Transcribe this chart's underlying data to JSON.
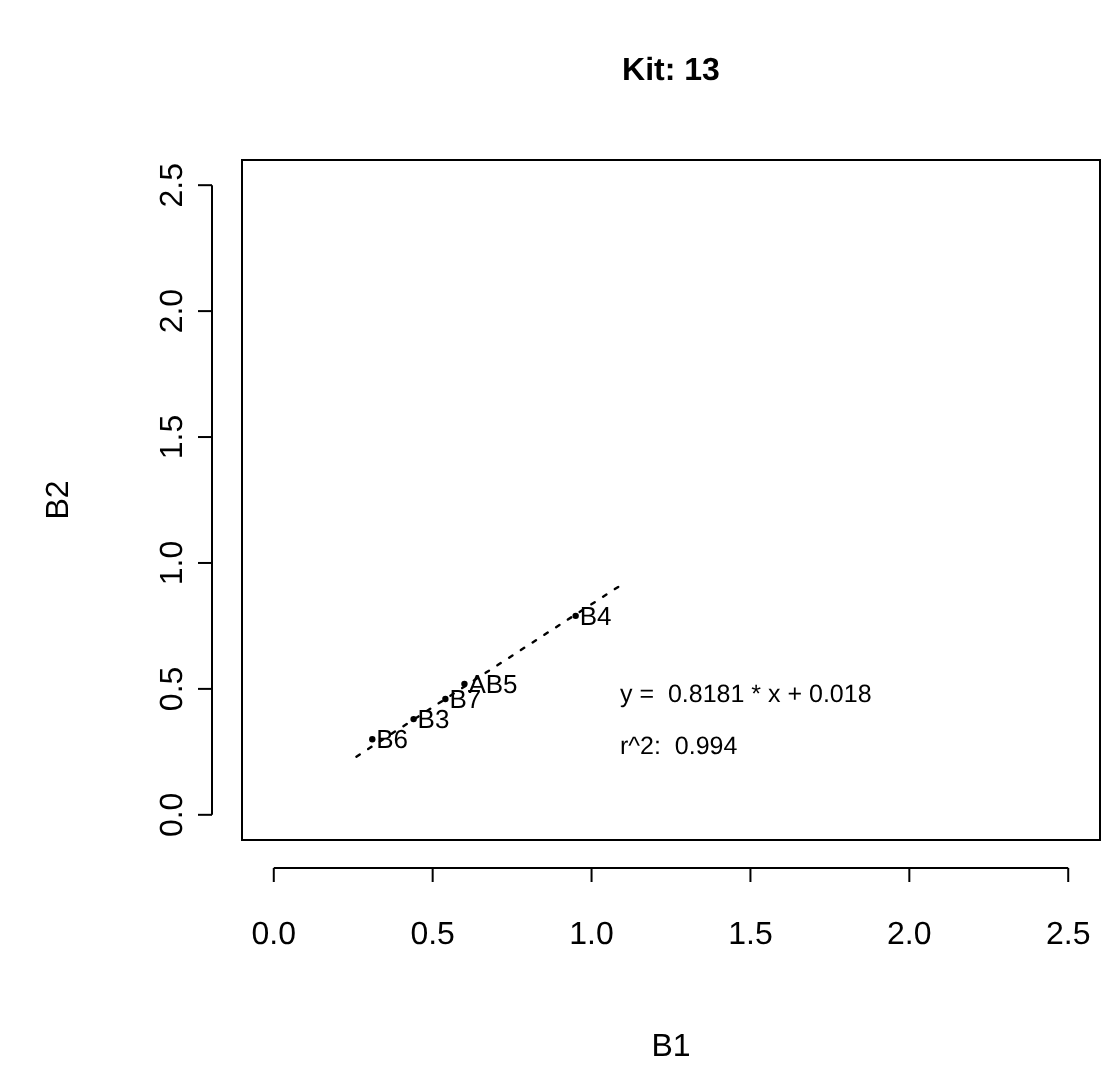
{
  "chart_data": {
    "type": "scatter",
    "title": "Kit:  13",
    "xlabel": "B1",
    "ylabel": "B2",
    "xlim": [
      -0.1,
      2.6
    ],
    "ylim": [
      -0.1,
      2.6
    ],
    "xticks": [
      {
        "value": 0,
        "label": "0.0"
      },
      {
        "value": 0.5,
        "label": "0.5"
      },
      {
        "value": 1,
        "label": "1.0"
      },
      {
        "value": 1.5,
        "label": "1.5"
      },
      {
        "value": 2,
        "label": "2.0"
      },
      {
        "value": 2.5,
        "label": "2.5"
      }
    ],
    "yticks": [
      {
        "value": 0,
        "label": "0.0"
      },
      {
        "value": 0.5,
        "label": "0.5"
      },
      {
        "value": 1,
        "label": "1.0"
      },
      {
        "value": 1.5,
        "label": "1.5"
      },
      {
        "value": 2,
        "label": "2.0"
      },
      {
        "value": 2.5,
        "label": "2.5"
      }
    ],
    "grid": false,
    "series": [
      {
        "color": "#000000",
        "marker": "circle",
        "x": [
          0.31,
          0.44,
          0.54,
          0.6,
          0.95
        ],
        "values": [
          0.3,
          0.38,
          0.46,
          0.52,
          0.79
        ],
        "value_labels": [
          "B6",
          "B3",
          "B7",
          "AB5",
          "B4"
        ]
      },
      {
        "type": "line",
        "color": "#000000",
        "line_style": "dotted",
        "x": [
          0.26,
          1.095
        ],
        "values": [
          0.231,
          0.914
        ]
      }
    ],
    "annotations": [
      "y =  0.8181 * x + 0.018",
      "r^2:  0.994"
    ]
  }
}
